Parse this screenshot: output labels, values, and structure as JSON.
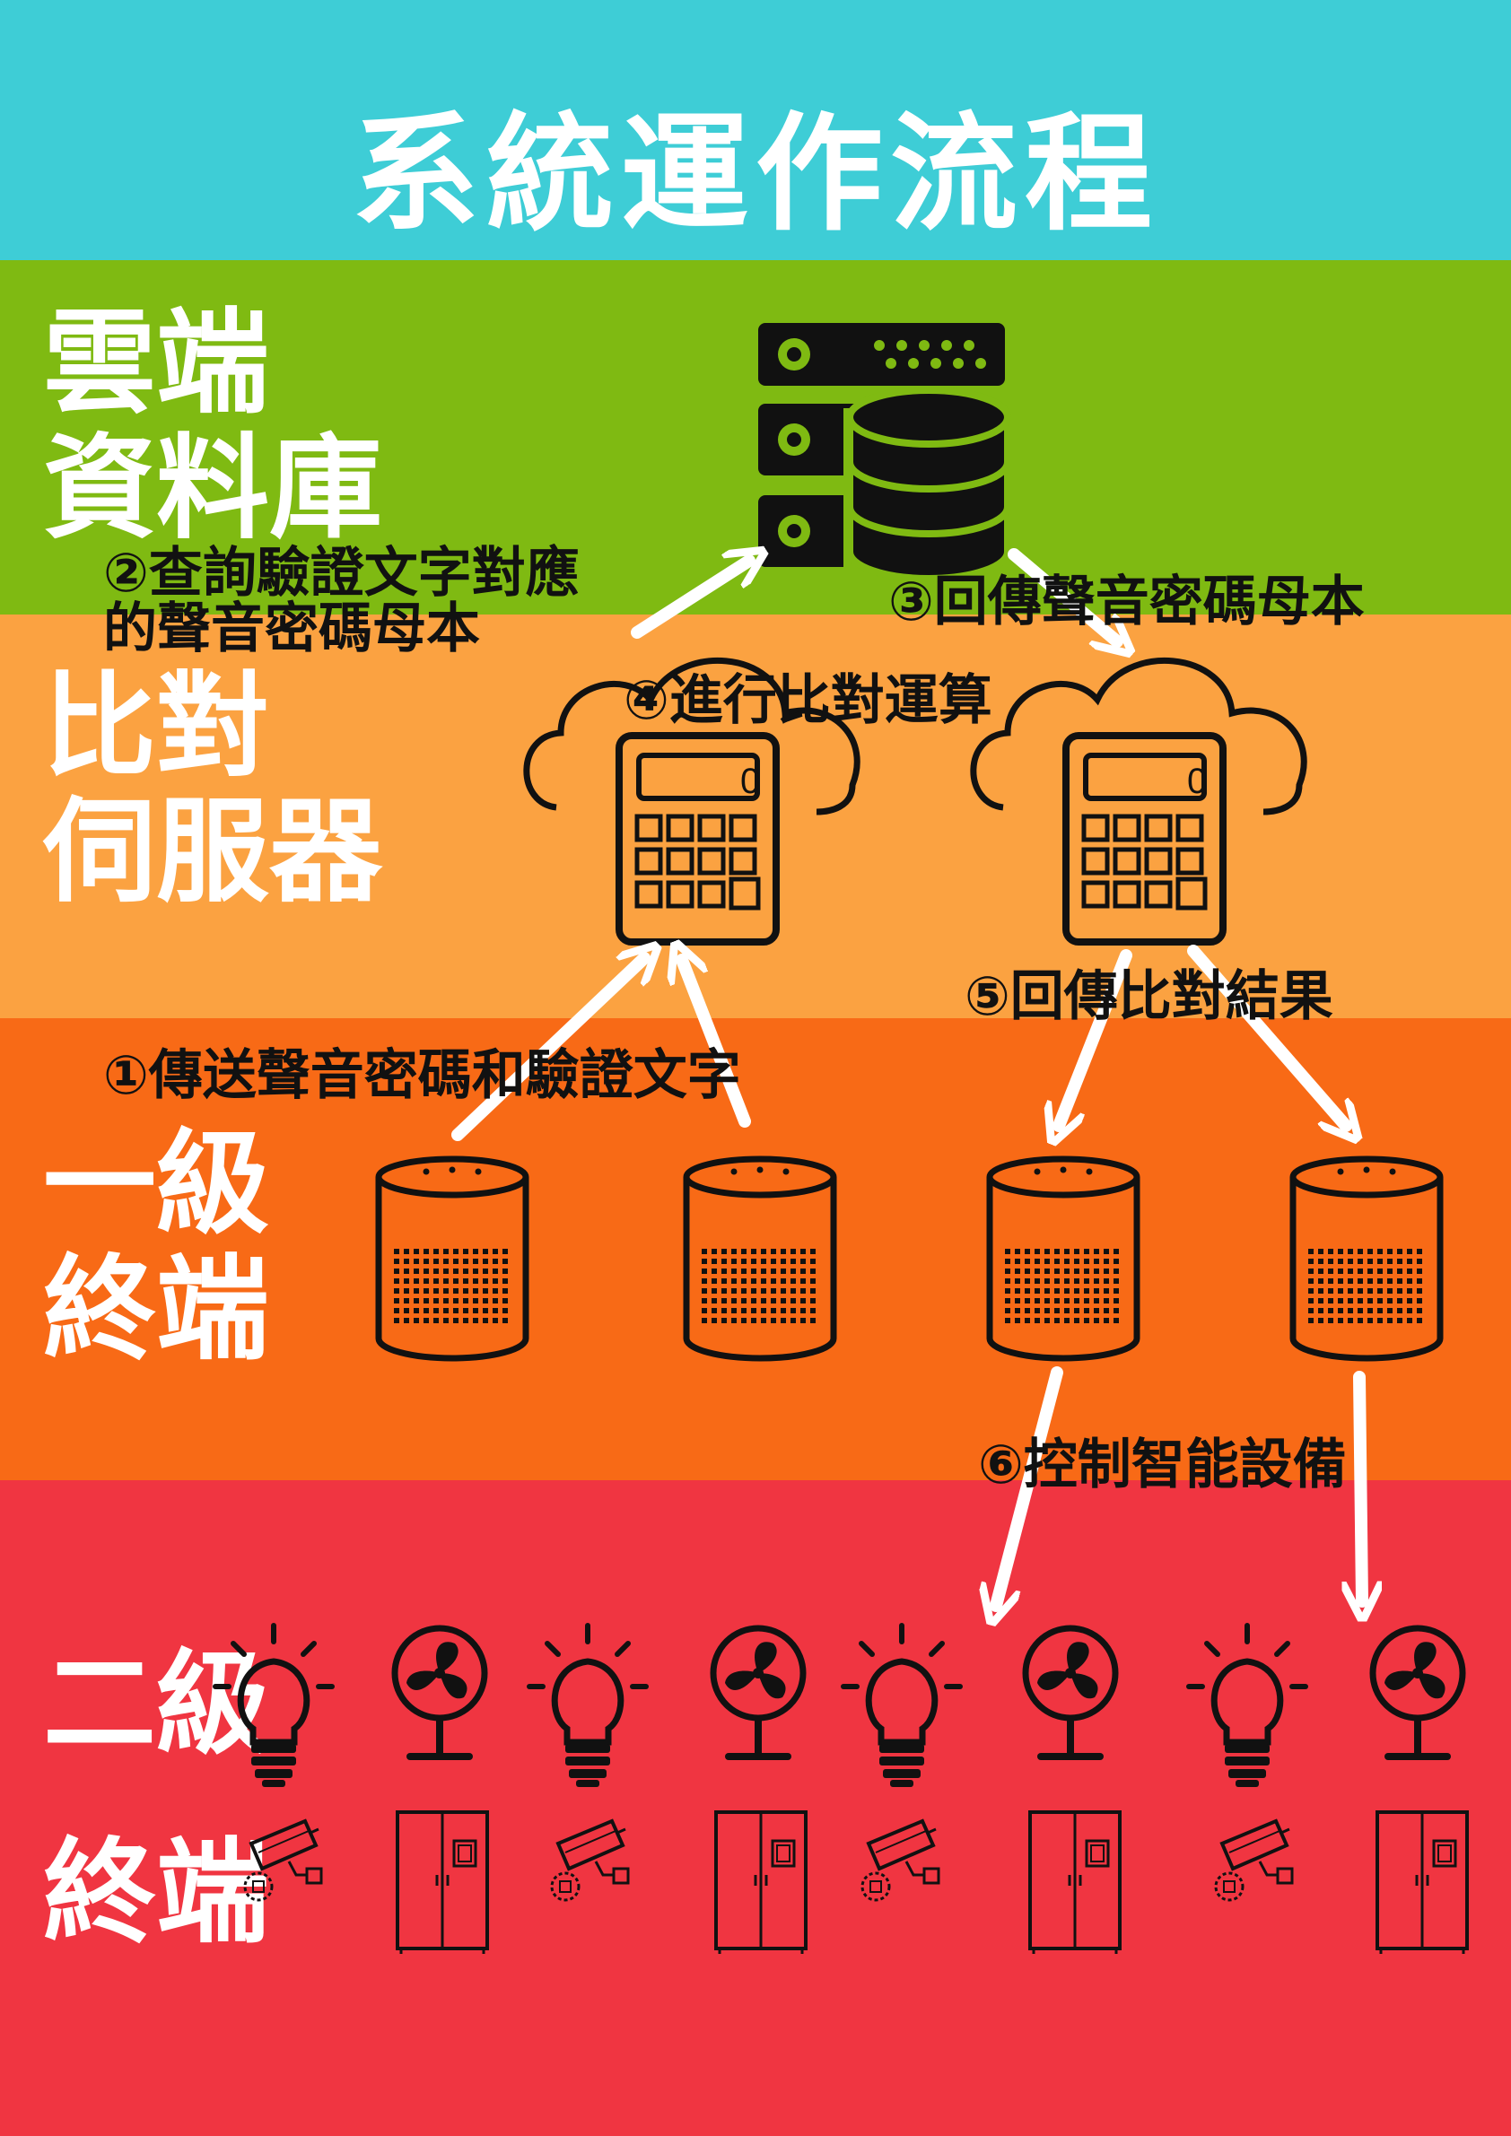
{
  "title": "系統運作流程",
  "layers": {
    "cloud": [
      "雲端",
      "資料庫"
    ],
    "server": [
      "比對",
      "伺服器"
    ],
    "level1": [
      "一級",
      "終端"
    ],
    "level2": [
      "二級",
      "終端"
    ]
  },
  "steps": {
    "step1": "①傳送聲音密碼和驗證文字",
    "step2_line1": "②查詢驗證文字對應",
    "step2_line2": "的聲音密碼母本",
    "step3": "③回傳聲音密碼母本",
    "step4": "④進行比對運算",
    "step5": "⑤回傳比對結果",
    "step6": "⑥控制智能設備"
  },
  "calculator_display": "0",
  "colors": {
    "title_band": "#3ecdd6",
    "cloud_band": "#7fba12",
    "server_band": "#fba241",
    "level1_band": "#f86a16",
    "level2_band": "#f03541"
  },
  "icons": {
    "database": "database-server-icon",
    "compare_server": "cloud-calculator-icon",
    "level1_device": "smart-speaker-icon",
    "level2_devices_row1": [
      "light-bulb-icon",
      "fan-icon"
    ],
    "level2_devices_row2": [
      "security-camera-icon",
      "refrigerator-icon"
    ]
  }
}
